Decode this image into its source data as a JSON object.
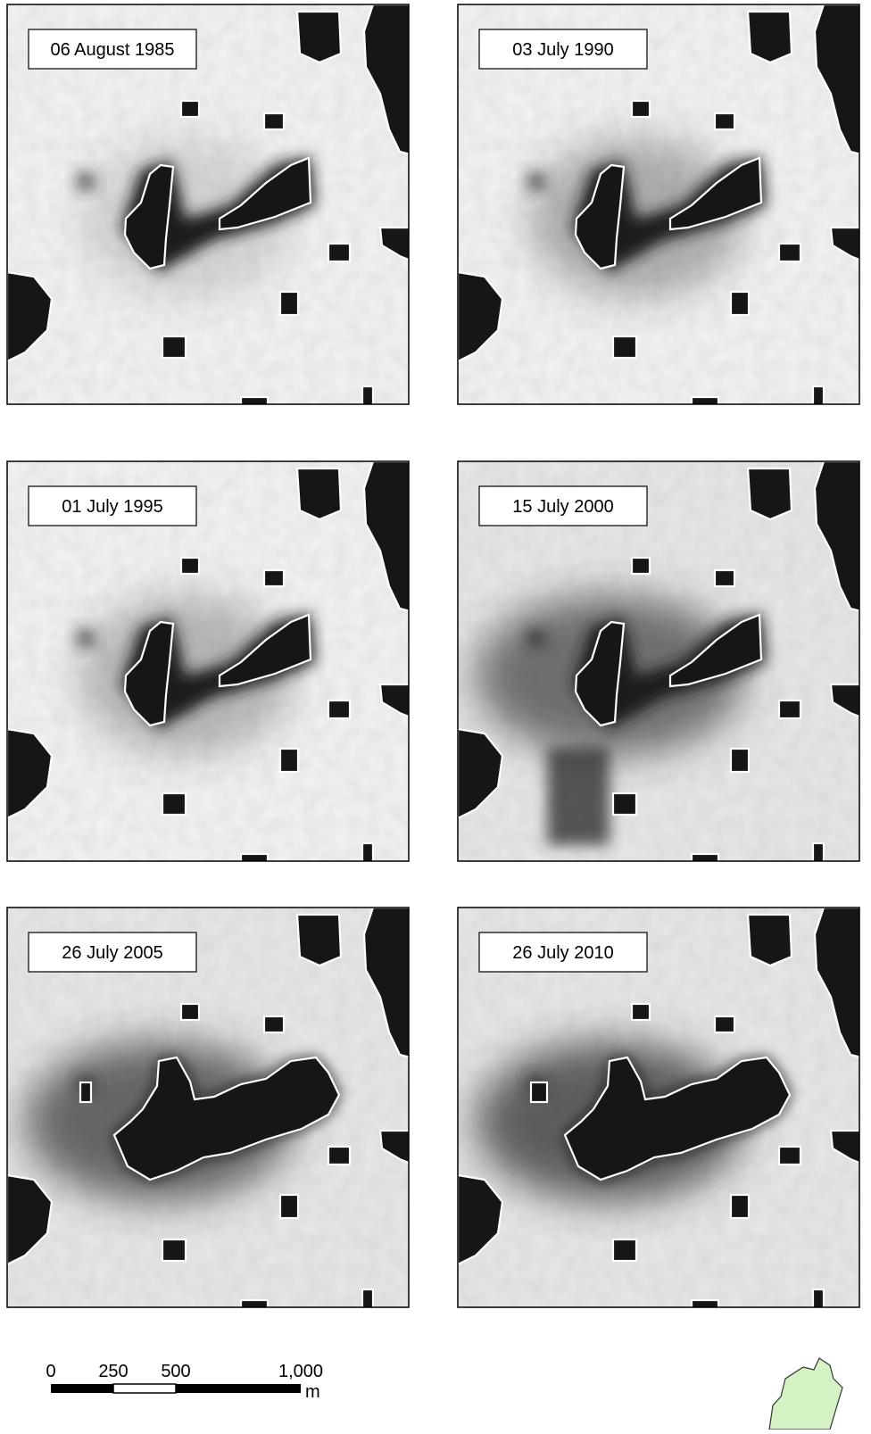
{
  "panels": [
    {
      "date": "06 August 1985"
    },
    {
      "date": "03 July 1990"
    },
    {
      "date": "01 July 1995"
    },
    {
      "date": "15 July 2000"
    },
    {
      "date": "26 July 2005"
    },
    {
      "date": "26 July 2010"
    }
  ],
  "scale_bar": {
    "ticks": [
      "0",
      "250",
      "500",
      "1,000"
    ],
    "unit": "m"
  }
}
